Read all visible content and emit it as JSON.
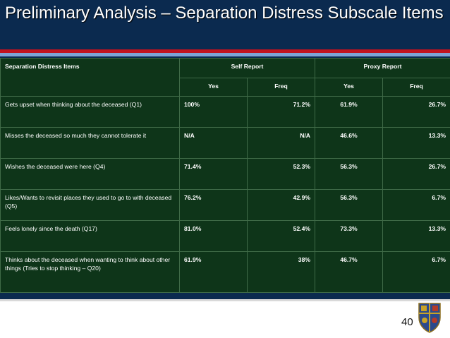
{
  "slide": {
    "title": "Preliminary Analysis – Separation Distress Subscale Items",
    "page_number": "40",
    "colors": {
      "background": "#0b2a4f",
      "table": "#0e3519",
      "accent_red": "#c1121f",
      "accent_blue": "#7ea3d6"
    },
    "crest_icon": "university-crest-icon"
  },
  "table": {
    "header": {
      "items": "Separation Distress Items",
      "self_report": "Self Report",
      "proxy_report": "Proxy Report"
    },
    "subheader": [
      "Yes",
      "Freq",
      "Yes",
      "Freq"
    ],
    "rows": [
      {
        "item": "Gets upset when thinking about the deceased (Q1)",
        "self_yes": "100%",
        "self_freq": "71.2%",
        "proxy_yes": "61.9%",
        "proxy_freq": "26.7%"
      },
      {
        "item": "Misses the deceased so much they cannot tolerate it",
        "self_yes": "N/A",
        "self_freq": "N/A",
        "proxy_yes": "46.6%",
        "proxy_freq": "13.3%"
      },
      {
        "item": "Wishes the deceased were here (Q4)",
        "self_yes": "71.4%",
        "self_freq": "52.3%",
        "proxy_yes": "56.3%",
        "proxy_freq": "26.7%"
      },
      {
        "item": "Likes/Wants to revisit places they used to go to with deceased (Q5)",
        "self_yes": "76.2%",
        "self_freq": "42.9%",
        "proxy_yes": "56.3%",
        "proxy_freq": "6.7%"
      },
      {
        "item": "Feels lonely since the death (Q17)",
        "self_yes": "81.0%",
        "self_freq": "52.4%",
        "proxy_yes": "73.3%",
        "proxy_freq": "13.3%"
      },
      {
        "item": "Thinks about the deceased when wanting to think about other things  (Tries to stop thinking – Q20)",
        "self_yes": "61.9%",
        "self_freq": "38%",
        "proxy_yes": "46.7%",
        "proxy_freq": "6.7%"
      }
    ]
  }
}
